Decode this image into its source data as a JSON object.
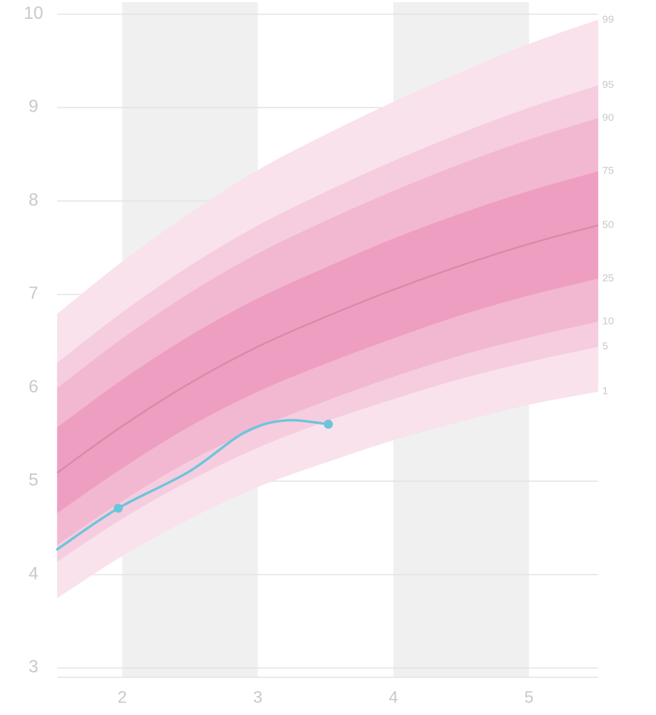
{
  "chart_data": {
    "type": "percentile-bands",
    "xlim": [
      1.52,
      5.51
    ],
    "ylim": [
      2.9,
      10.13
    ],
    "xticks": [
      2,
      3,
      4,
      5
    ],
    "yticks": [
      3,
      4,
      5,
      6,
      7,
      8,
      9,
      10
    ],
    "grid": true,
    "grid_color": "#e2e2e2",
    "shaded_x": [
      [
        2,
        3
      ],
      [
        4,
        5
      ]
    ],
    "shade_color": "#f0f0f0",
    "x": [
      1.52,
      2,
      2.5,
      3,
      3.5,
      4,
      4.5,
      5,
      5.51
    ],
    "series": [
      {
        "percentile": 1,
        "values": [
          3.75,
          4.2,
          4.6,
          4.94,
          5.2,
          5.44,
          5.64,
          5.82,
          5.96
        ]
      },
      {
        "percentile": 5,
        "values": [
          4.14,
          4.6,
          5.01,
          5.36,
          5.64,
          5.88,
          6.1,
          6.28,
          6.44
        ]
      },
      {
        "percentile": 10,
        "values": [
          4.32,
          4.79,
          5.22,
          5.57,
          5.86,
          6.12,
          6.35,
          6.54,
          6.71
        ]
      },
      {
        "percentile": 25,
        "values": [
          4.66,
          5.14,
          5.59,
          5.96,
          6.26,
          6.53,
          6.78,
          6.99,
          7.17
        ]
      },
      {
        "percentile": 50,
        "values": [
          5.09,
          5.59,
          6.05,
          6.44,
          6.76,
          7.05,
          7.31,
          7.54,
          7.74
        ],
        "line_color": "#d88aab"
      },
      {
        "percentile": 75,
        "values": [
          5.58,
          6.09,
          6.56,
          6.96,
          7.29,
          7.6,
          7.87,
          8.11,
          8.32
        ]
      },
      {
        "percentile": 90,
        "values": [
          6.0,
          6.53,
          7.02,
          7.44,
          7.79,
          8.11,
          8.4,
          8.66,
          8.89
        ]
      },
      {
        "percentile": 95,
        "values": [
          6.27,
          6.81,
          7.31,
          7.74,
          8.1,
          8.43,
          8.73,
          9.0,
          9.24
        ]
      },
      {
        "percentile": 99,
        "values": [
          6.79,
          7.35,
          7.87,
          8.33,
          8.71,
          9.06,
          9.38,
          9.68,
          9.94
        ]
      }
    ],
    "band_colors": [
      "#f9e2ec",
      "#f5cddf",
      "#f2b8d1",
      "#ee9fc1",
      "#ee9fc1",
      "#f2b8d1",
      "#f5cddf",
      "#f9e2ec"
    ],
    "measurement": {
      "x": [
        1.52,
        1.97,
        2.49,
        2.9,
        3.2,
        3.52
      ],
      "values": [
        4.27,
        4.71,
        5.1,
        5.52,
        5.65,
        5.61
      ],
      "dots": [
        false,
        true,
        false,
        false,
        false,
        true
      ],
      "color": "#6cc5db"
    }
  }
}
